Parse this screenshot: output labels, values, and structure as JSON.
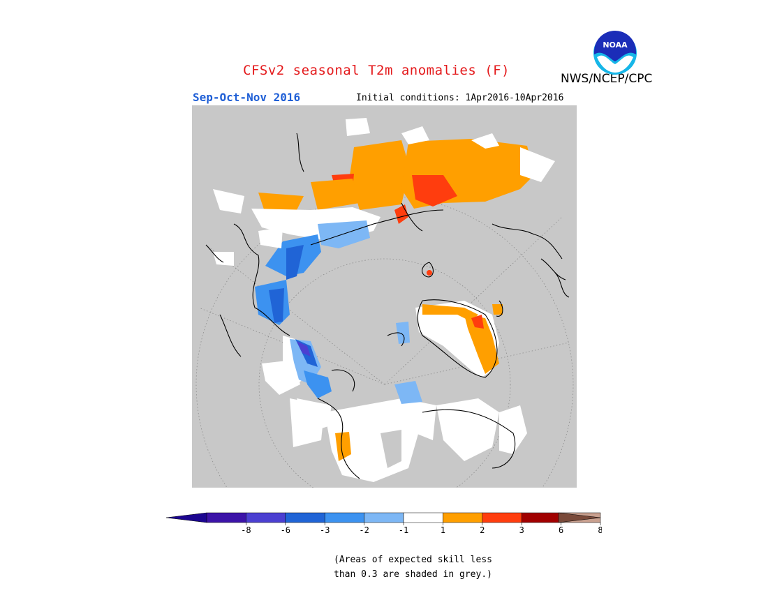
{
  "header": {
    "title": "CFSv2 seasonal T2m anomalies (F)",
    "agency": "NWS/NCEP/CPC",
    "season": "Sep-Oct-Nov 2016",
    "initial_conditions": "Initial conditions: 1Apr2016-10Apr2016",
    "logo_text": "NOAA"
  },
  "colorbar": {
    "colors": [
      "#3c13a8",
      "#4b3fd1",
      "#2064d6",
      "#3c92f0",
      "#7db7f5",
      "#ffffff",
      "#ff9f00",
      "#ff3d0e",
      "#a10000",
      "#c9a08f"
    ],
    "left_arrow_color": "#1c0690",
    "right_arrow_color": "#7a4a3a",
    "tick_labels": [
      "-8",
      "-6",
      "-3",
      "-2",
      "-1",
      "1",
      "2",
      "3",
      "6",
      "8"
    ]
  },
  "note": {
    "line1": "(Areas of expected skill less",
    "line2": "than 0.3 are shaded in grey.)"
  },
  "map": {
    "background": "#c8c8c8",
    "regions": [
      {
        "category": "white",
        "color": "#ffffff"
      },
      {
        "category": "+1 to +2",
        "color": "#ff9f00"
      },
      {
        "category": "+2 to +3",
        "color": "#ff3d0e"
      },
      {
        "category": "-1 to -2",
        "color": "#7db7f5"
      },
      {
        "category": "-2 to -3",
        "color": "#3c92f0"
      },
      {
        "category": "-3 to -6",
        "color": "#2064d6"
      },
      {
        "category": "-6 to -8",
        "color": "#4b3fd1"
      }
    ]
  }
}
